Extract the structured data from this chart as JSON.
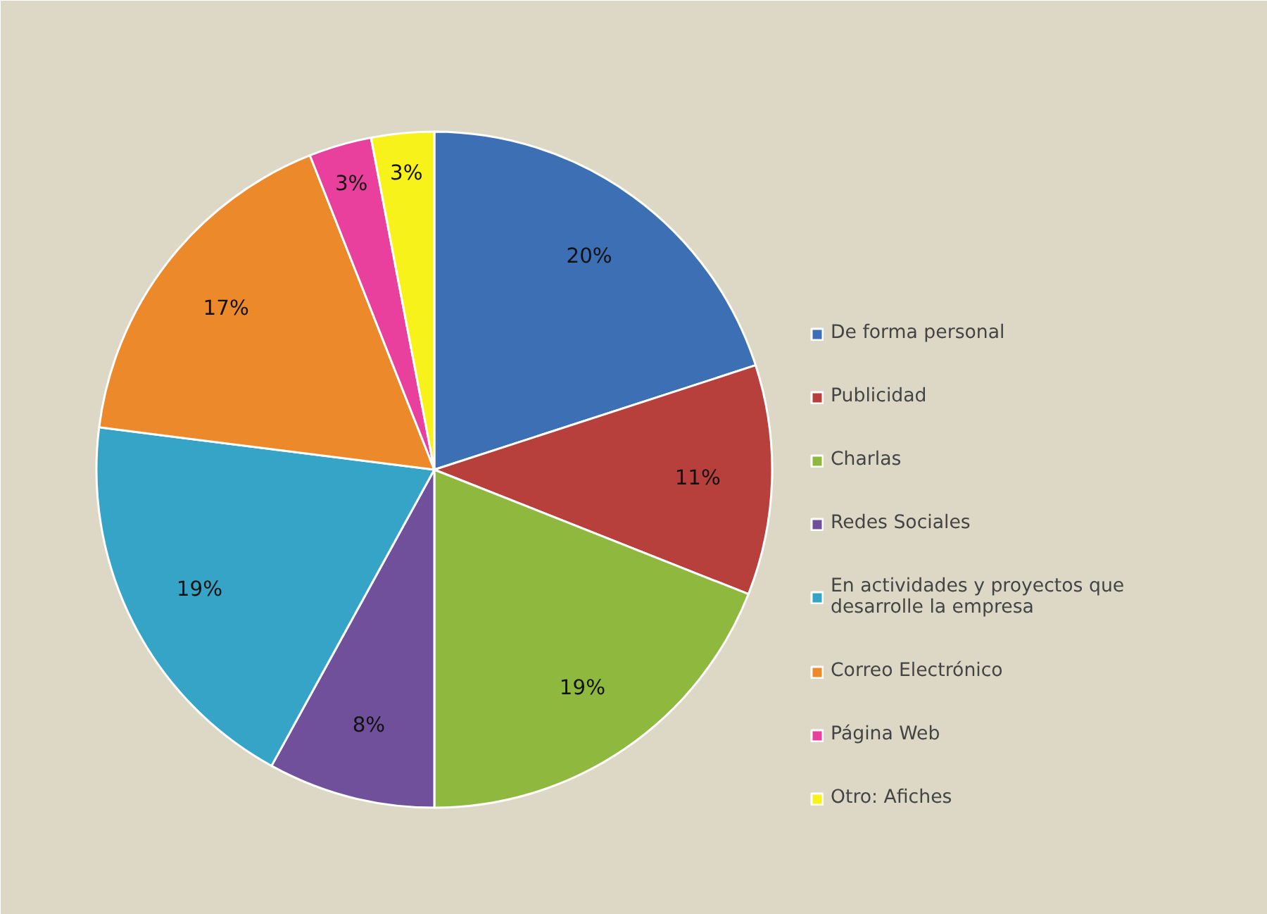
{
  "chart_data": {
    "type": "pie",
    "categories": [
      "De forma personal",
      "Publicidad",
      "Charlas",
      "Redes Sociales",
      "En actividades y proyectos que desarrolle la empresa",
      "Correo Electrónico",
      "Página Web",
      "Otro: Afiches"
    ],
    "values": [
      20,
      11,
      19,
      8,
      19,
      17,
      3,
      3
    ],
    "colors": [
      "#3d6fb5",
      "#b8403c",
      "#8fb83f",
      "#70509a",
      "#35a4c6",
      "#ec8a2b",
      "#e8409c",
      "#f7f21a"
    ],
    "value_labels": [
      "20%",
      "11%",
      "19%",
      "8%",
      "19%",
      "17%",
      "3%",
      "3%"
    ],
    "legend": "right"
  }
}
